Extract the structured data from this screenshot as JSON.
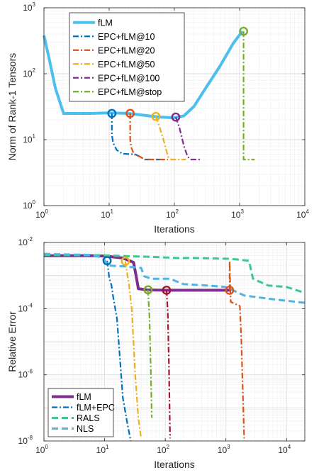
{
  "chart_data": [
    {
      "type": "line",
      "xscale": "log",
      "yscale": "log",
      "xlim": [
        1,
        10000
      ],
      "ylim": [
        1,
        1000
      ],
      "grid": true,
      "xlabel": "Iterations",
      "ylabel": "Norm of Rank-1 Tensors",
      "legend_position": "top-left",
      "x_ticks": [
        1,
        10,
        100,
        1000,
        10000
      ],
      "y_ticks": [
        1,
        10,
        100,
        1000
      ],
      "series": [
        {
          "name": "fLM",
          "color": "#4DBEEE",
          "style": "solid",
          "points": [
            [
              1,
              380
            ],
            [
              1.2,
              170
            ],
            [
              1.5,
              60
            ],
            [
              2,
              25
            ],
            [
              5,
              25
            ],
            [
              10,
              25.5
            ],
            [
              20,
              25
            ],
            [
              40,
              23
            ],
            [
              60,
              22
            ],
            [
              100,
              21.5
            ],
            [
              140,
              23
            ],
            [
              200,
              32
            ],
            [
              300,
              60
            ],
            [
              500,
              130
            ],
            [
              800,
              290
            ],
            [
              1100,
              440
            ]
          ]
        },
        {
          "name": "EPC+fLM@10",
          "color": "#0072BD",
          "style": "dashdot",
          "marker_at": [
            11,
            25
          ],
          "points": [
            [
              11,
              25
            ],
            [
              11,
              12
            ],
            [
              11.5,
              9
            ],
            [
              13,
              7
            ],
            [
              16,
              6.1
            ],
            [
              25,
              6
            ],
            [
              30,
              5.5
            ],
            [
              35,
              5
            ],
            [
              60,
              5
            ]
          ]
        },
        {
          "name": "EPC+fLM@20",
          "color": "#D95319",
          "style": "dashdot",
          "marker_at": [
            21,
            25
          ],
          "points": [
            [
              21,
              25
            ],
            [
              21,
              10
            ],
            [
              22,
              7.5
            ],
            [
              24,
              6
            ],
            [
              30,
              5.5
            ],
            [
              35,
              5
            ],
            [
              80,
              5
            ]
          ]
        },
        {
          "name": "EPC+fLM@50",
          "color": "#EDB120",
          "style": "dashdot",
          "marker_at": [
            52,
            22.5
          ],
          "points": [
            [
              52,
              22.5
            ],
            [
              60,
              15
            ],
            [
              70,
              9
            ],
            [
              80,
              5.5
            ],
            [
              90,
              5
            ],
            [
              150,
              5
            ]
          ]
        },
        {
          "name": "EPC+fLM@100",
          "color": "#7E2F8E",
          "style": "dashdot",
          "marker_at": [
            105,
            22
          ],
          "points": [
            [
              105,
              22
            ],
            [
              120,
              15
            ],
            [
              140,
              8
            ],
            [
              160,
              5.5
            ],
            [
              180,
              5
            ],
            [
              250,
              5
            ]
          ]
        },
        {
          "name": "EPC+fLM@stop",
          "color": "#77AC30",
          "style": "dashdot",
          "marker_at": [
            1150,
            440
          ],
          "points": [
            [
              1150,
              440
            ],
            [
              1150,
              60
            ],
            [
              1150,
              5
            ],
            [
              1700,
              5
            ]
          ]
        }
      ]
    },
    {
      "type": "line",
      "xscale": "log",
      "yscale": "log",
      "xlim": [
        1,
        20000
      ],
      "ylim": [
        1e-08,
        0.01
      ],
      "grid": true,
      "xlabel": "Iterations",
      "ylabel": "Relative Error",
      "legend_position": "bottom-left",
      "x_ticks": [
        1,
        10,
        100,
        1000,
        10000
      ],
      "y_ticks": [
        1e-08,
        1e-06,
        0.0001,
        0.01
      ],
      "series": [
        {
          "name": "fLM",
          "color": "#7E2F8E",
          "style": "solid",
          "points": [
            [
              1,
              0.004
            ],
            [
              5,
              0.004
            ],
            [
              10,
              0.0039
            ],
            [
              20,
              0.0034
            ],
            [
              30,
              0.0025
            ],
            [
              33,
              0.001
            ],
            [
              36,
              0.0004
            ],
            [
              50,
              0.00037
            ],
            [
              100,
              0.00036
            ],
            [
              1200,
              0.00036
            ]
          ]
        },
        {
          "name": "fLM+EPC",
          "color": "#0072BD",
          "style": "dashdot",
          "marker_at": [
            11,
            0.0028
          ],
          "points": [
            [
              11,
              0.0028
            ],
            [
              12,
              0.0008
            ],
            [
              13,
              0.0005
            ],
            [
              14,
              0.0002
            ],
            [
              16,
              5e-05
            ],
            [
              20,
              2e-07
            ],
            [
              24,
              3e-08
            ],
            [
              27,
              1e-08
            ]
          ]
        },
        {
          "name": "RALS",
          "color": "#3EC78E",
          "style": "dashed",
          "points": [
            [
              1,
              0.0042
            ],
            [
              10,
              0.0041
            ],
            [
              30,
              0.0038
            ],
            [
              80,
              0.0036
            ],
            [
              150,
              0.0034
            ],
            [
              300,
              0.0034
            ],
            [
              600,
              0.0033
            ],
            [
              1200,
              0.0032
            ],
            [
              2400,
              0.0028
            ],
            [
              2800,
              0.0008
            ],
            [
              5000,
              0.0005
            ],
            [
              10000,
              0.00045
            ],
            [
              20000,
              0.0003
            ]
          ]
        },
        {
          "name": "NLS",
          "color": "#50B4E6",
          "style": "dashed",
          "points": [
            [
              1,
              0.0045
            ],
            [
              6,
              0.0042
            ],
            [
              9,
              0.0035
            ],
            [
              12,
              0.002
            ],
            [
              20,
              0.0019
            ],
            [
              40,
              0.0017
            ],
            [
              45,
              0.00095
            ],
            [
              60,
              0.0008
            ],
            [
              120,
              0.0008
            ],
            [
              200,
              0.00055
            ],
            [
              500,
              0.0005
            ],
            [
              1000,
              0.00045
            ],
            [
              2000,
              0.00025
            ],
            [
              5000,
              0.0002
            ],
            [
              20000,
              0.00015
            ]
          ]
        },
        {
          "name": "",
          "color": "#EDB120",
          "style": "dashdot",
          "marker_at": [
            22,
            0.0027
          ],
          "points": [
            [
              22,
              0.0027
            ],
            [
              23,
              0.0015
            ],
            [
              25,
              0.0006
            ],
            [
              28,
              0.0001
            ],
            [
              32,
              1e-06
            ],
            [
              36,
              5e-08
            ],
            [
              40,
              1.2e-08
            ]
          ]
        },
        {
          "name": "",
          "color": "#77AC30",
          "style": "dashdot",
          "marker_at": [
            52,
            0.00037
          ],
          "points": [
            [
              52,
              0.00037
            ],
            [
              55,
              5e-05
            ],
            [
              58,
              1e-06
            ],
            [
              60,
              5e-08
            ]
          ]
        },
        {
          "name": "",
          "color": "#A2142F",
          "style": "dashdot",
          "marker_at": [
            105,
            0.00036
          ],
          "points": [
            [
              105,
              0.00036
            ],
            [
              110,
              8e-05
            ],
            [
              115,
              2e-06
            ],
            [
              120,
              1.2e-08
            ]
          ]
        },
        {
          "name": "",
          "color": "#D95319",
          "style": "dashdot",
          "marker_at": [
            1150,
            0.00036
          ],
          "points": [
            [
              1150,
              0.00036
            ],
            [
              1150,
              0.0028
            ],
            [
              1200,
              0.00016
            ],
            [
              1700,
              0.00012
            ],
            [
              1800,
              1e-05
            ],
            [
              1900,
              3e-07
            ],
            [
              2000,
              1.2e-08
            ]
          ]
        }
      ]
    }
  ]
}
